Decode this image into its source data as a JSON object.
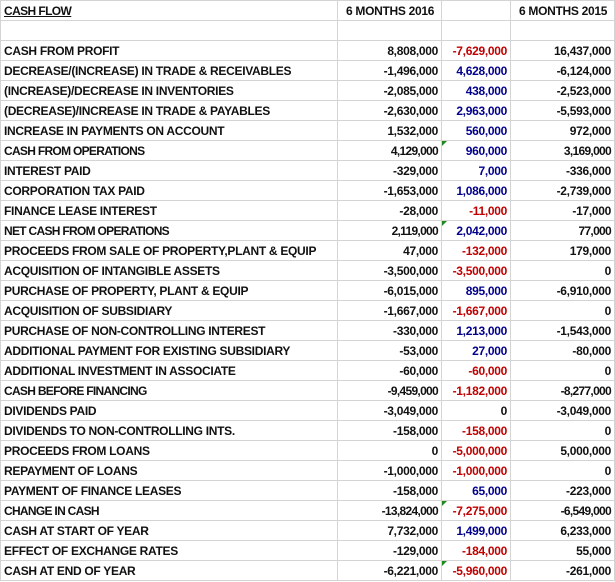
{
  "sheet": {
    "title": "CASH FLOW",
    "headers": {
      "col_2016": "6 MONTHS 2016",
      "col_diff": "",
      "col_2015": "6 MONTHS 2015"
    },
    "colors": {
      "positive_diff": "#00008b",
      "negative_diff": "#c00000",
      "comment_flag": "#1e8a1e",
      "grid": "#d4d4d4"
    },
    "rows": [
      {
        "label": "CASH FROM PROFIT",
        "v2016": "8,808,000",
        "diff": "-7,629,000",
        "diff_sign": "neg",
        "v2015": "16,437,000",
        "bold": false,
        "flag": false
      },
      {
        "label": "DECREASE/(INCREASE) IN TRADE & RECEIVABLES",
        "v2016": "-1,496,000",
        "diff": "4,628,000",
        "diff_sign": "pos",
        "v2015": "-6,124,000",
        "bold": false,
        "flag": false
      },
      {
        "label": "(INCREASE)/DECREASE IN INVENTORIES",
        "v2016": "-2,085,000",
        "diff": "438,000",
        "diff_sign": "pos",
        "v2015": "-2,523,000",
        "bold": false,
        "flag": false
      },
      {
        "label": "(DECREASE)/INCREASE IN TRADE & PAYABLES",
        "v2016": "-2,630,000",
        "diff": "2,963,000",
        "diff_sign": "pos",
        "v2015": "-5,593,000",
        "bold": false,
        "flag": false
      },
      {
        "label": "INCREASE IN PAYMENTS ON ACCOUNT",
        "v2016": "1,532,000",
        "diff": "560,000",
        "diff_sign": "pos",
        "v2015": "972,000",
        "bold": false,
        "flag": false
      },
      {
        "label": "CASH FROM OPERATIONS",
        "v2016": "4,129,000",
        "diff": "960,000",
        "diff_sign": "pos",
        "v2015": "3,169,000",
        "bold": true,
        "flag": true
      },
      {
        "label": "INTEREST PAID",
        "v2016": "-329,000",
        "diff": "7,000",
        "diff_sign": "pos",
        "v2015": "-336,000",
        "bold": false,
        "flag": false
      },
      {
        "label": "CORPORATION TAX PAID",
        "v2016": "-1,653,000",
        "diff": "1,086,000",
        "diff_sign": "pos",
        "v2015": "-2,739,000",
        "bold": false,
        "flag": false
      },
      {
        "label": "FINANCE LEASE INTEREST",
        "v2016": "-28,000",
        "diff": "-11,000",
        "diff_sign": "neg",
        "v2015": "-17,000",
        "bold": false,
        "flag": false
      },
      {
        "label": "NET CASH FROM OPERATIONS",
        "v2016": "2,119,000",
        "diff": "2,042,000",
        "diff_sign": "pos",
        "v2015": "77,000",
        "bold": true,
        "flag": true
      },
      {
        "label": "PROCEEDS FROM SALE OF PROPERTY,PLANT & EQUIP",
        "v2016": "47,000",
        "diff": "-132,000",
        "diff_sign": "neg",
        "v2015": "179,000",
        "bold": false,
        "flag": false
      },
      {
        "label": "ACQUISITION OF INTANGIBLE ASSETS",
        "v2016": "-3,500,000",
        "diff": "-3,500,000",
        "diff_sign": "neg",
        "v2015": "0",
        "bold": false,
        "flag": false
      },
      {
        "label": "PURCHASE OF PROPERTY, PLANT & EQUIP",
        "v2016": "-6,015,000",
        "diff": "895,000",
        "diff_sign": "pos",
        "v2015": "-6,910,000",
        "bold": false,
        "flag": false
      },
      {
        "label": "ACQUISITION OF SUBSIDIARY",
        "v2016": "-1,667,000",
        "diff": "-1,667,000",
        "diff_sign": "neg",
        "v2015": "0",
        "bold": false,
        "flag": false
      },
      {
        "label": "PURCHASE OF NON-CONTROLLING INTEREST",
        "v2016": "-330,000",
        "diff": "1,213,000",
        "diff_sign": "pos",
        "v2015": "-1,543,000",
        "bold": false,
        "flag": false
      },
      {
        "label": "ADDITIONAL PAYMENT FOR EXISTING SUBSIDIARY",
        "v2016": "-53,000",
        "diff": "27,000",
        "diff_sign": "pos",
        "v2015": "-80,000",
        "bold": false,
        "flag": false
      },
      {
        "label": "ADDITIONAL INVESTMENT IN ASSOCIATE",
        "v2016": "-60,000",
        "diff": "-60,000",
        "diff_sign": "neg",
        "v2015": "0",
        "bold": false,
        "flag": false
      },
      {
        "label": "CASH BEFORE FINANCING",
        "v2016": "-9,459,000",
        "diff": "-1,182,000",
        "diff_sign": "neg",
        "v2015": "-8,277,000",
        "bold": true,
        "flag": false
      },
      {
        "label": "DIVIDENDS PAID",
        "v2016": "-3,049,000",
        "diff": "0",
        "diff_sign": "zero",
        "v2015": "-3,049,000",
        "bold": false,
        "flag": false
      },
      {
        "label": "DIVIDENDS TO NON-CONTROLLING INTS.",
        "v2016": "-158,000",
        "diff": "-158,000",
        "diff_sign": "neg",
        "v2015": "0",
        "bold": false,
        "flag": false
      },
      {
        "label": "PROCEEDS FROM LOANS",
        "v2016": "0",
        "diff": "-5,000,000",
        "diff_sign": "neg",
        "v2015": "5,000,000",
        "bold": false,
        "flag": false
      },
      {
        "label": "REPAYMENT OF LOANS",
        "v2016": "-1,000,000",
        "diff": "-1,000,000",
        "diff_sign": "neg",
        "v2015": "0",
        "bold": false,
        "flag": false
      },
      {
        "label": "PAYMENT OF FINANCE LEASES",
        "v2016": "-158,000",
        "diff": "65,000",
        "diff_sign": "pos",
        "v2015": "-223,000",
        "bold": false,
        "flag": false
      },
      {
        "label": "CHANGE IN CASH",
        "v2016": "-13,824,000",
        "diff": "-7,275,000",
        "diff_sign": "neg",
        "v2015": "-6,549,000",
        "bold": true,
        "flag": true
      },
      {
        "label": "CASH AT START OF YEAR",
        "v2016": "7,732,000",
        "diff": "1,499,000",
        "diff_sign": "pos",
        "v2015": "6,233,000",
        "bold": false,
        "flag": false
      },
      {
        "label": "EFFECT OF EXCHANGE RATES",
        "v2016": "-129,000",
        "diff": "-184,000",
        "diff_sign": "neg",
        "v2015": "55,000",
        "bold": false,
        "flag": false
      },
      {
        "label": "CASH AT END OF YEAR",
        "v2016": "-6,221,000",
        "diff": "-5,960,000",
        "diff_sign": "neg",
        "v2015": "-261,000",
        "bold": false,
        "flag": true
      }
    ]
  }
}
